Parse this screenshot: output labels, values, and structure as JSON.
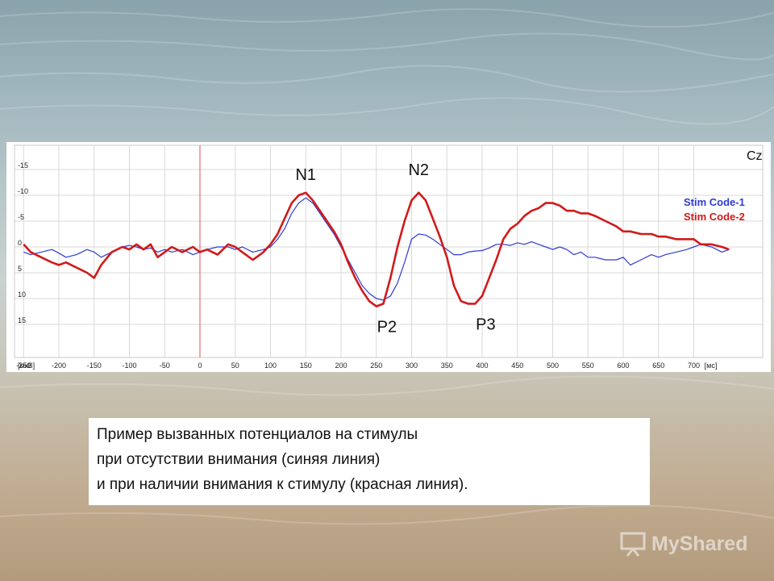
{
  "chart_data": {
    "type": "line",
    "channel_label": "Cz",
    "ylabel": "[мкВ]",
    "xlabel": "[мс]",
    "x_ticks": [
      -250,
      -200,
      -150,
      -100,
      -50,
      0,
      50,
      100,
      150,
      200,
      250,
      300,
      350,
      400,
      450,
      500,
      550,
      600,
      650,
      700
    ],
    "y_ticks": [
      -15,
      -10,
      -5,
      0,
      5,
      10,
      15
    ],
    "xlim": [
      -250,
      750
    ],
    "ylim": [
      -18,
      21
    ],
    "y_inverted": true,
    "grid": true,
    "stimulus_marker_x": 0,
    "legend_position": "top-right",
    "series": [
      {
        "name": "Stim Code-1",
        "color": "#2f3bd1",
        "x": [
          -250,
          -240,
          -225,
          -210,
          -200,
          -190,
          -175,
          -160,
          -150,
          -140,
          -125,
          -110,
          -100,
          -90,
          -80,
          -70,
          -60,
          -50,
          -40,
          -25,
          -10,
          0,
          10,
          25,
          40,
          50,
          60,
          75,
          90,
          100,
          110,
          120,
          130,
          140,
          150,
          160,
          170,
          180,
          190,
          200,
          210,
          220,
          230,
          240,
          250,
          260,
          270,
          280,
          290,
          300,
          310,
          320,
          330,
          340,
          350,
          360,
          370,
          380,
          390,
          400,
          410,
          420,
          430,
          440,
          450,
          460,
          470,
          480,
          490,
          500,
          510,
          520,
          530,
          540,
          550,
          560,
          575,
          590,
          600,
          610,
          625,
          640,
          650,
          660,
          675,
          690,
          700,
          710,
          725,
          740,
          750
        ],
        "y": [
          1,
          1.5,
          1,
          0.5,
          1.2,
          2,
          1.5,
          0.5,
          1,
          2,
          1,
          0,
          -0.3,
          0,
          0.5,
          0.2,
          1,
          0.5,
          1,
          0.5,
          1.5,
          1,
          0.5,
          0,
          0,
          0.5,
          0,
          1,
          0.5,
          0,
          -1.5,
          -3.5,
          -6.5,
          -8.5,
          -9.5,
          -8.5,
          -6.5,
          -4.5,
          -2.5,
          0,
          2.5,
          5,
          7.5,
          9,
          10,
          10.3,
          9.5,
          7,
          3,
          -1.5,
          -2.5,
          -2.3,
          -1.5,
          -0.5,
          0.5,
          1.5,
          1.5,
          1,
          0.8,
          0.7,
          0.2,
          -0.5,
          -0.5,
          -0.3,
          -0.8,
          -0.5,
          -1,
          -0.5,
          0,
          0.5,
          0,
          0.5,
          1.5,
          1,
          2,
          2,
          2.5,
          2.5,
          2,
          3.5,
          2.5,
          1.5,
          2,
          1.5,
          1,
          0.5,
          0,
          -0.5,
          0,
          1,
          0.5
        ]
      },
      {
        "name": "Stim Code-2",
        "color": "#d11a1a",
        "x": [
          -250,
          -240,
          -225,
          -210,
          -200,
          -190,
          -175,
          -160,
          -150,
          -140,
          -125,
          -110,
          -100,
          -90,
          -80,
          -70,
          -60,
          -50,
          -40,
          -25,
          -10,
          0,
          10,
          25,
          40,
          50,
          60,
          75,
          90,
          100,
          110,
          120,
          130,
          140,
          150,
          160,
          170,
          180,
          190,
          200,
          210,
          220,
          230,
          240,
          250,
          260,
          270,
          280,
          290,
          300,
          310,
          320,
          330,
          340,
          350,
          360,
          370,
          380,
          390,
          400,
          410,
          420,
          430,
          440,
          450,
          460,
          470,
          480,
          490,
          500,
          510,
          520,
          530,
          540,
          550,
          560,
          575,
          590,
          600,
          610,
          625,
          640,
          650,
          660,
          675,
          690,
          700,
          710,
          725,
          740,
          750
        ],
        "y": [
          -0.5,
          1,
          2,
          3,
          3.5,
          3,
          4,
          5,
          6,
          3.5,
          1,
          0,
          0.5,
          -0.5,
          0.5,
          -0.5,
          2,
          1,
          0,
          1,
          0,
          1,
          0.5,
          1.5,
          -0.5,
          0,
          1,
          2.5,
          1,
          -0.5,
          -2.5,
          -5.5,
          -8.5,
          -10,
          -10.5,
          -9,
          -7,
          -5,
          -3,
          -0.5,
          3,
          6,
          8.5,
          10.5,
          11.5,
          11,
          6,
          0,
          -5,
          -9,
          -10.5,
          -9,
          -5.5,
          -2,
          2,
          7.5,
          10.5,
          11,
          11,
          9.5,
          6,
          2.5,
          -1.5,
          -3.5,
          -4.5,
          -6,
          -7,
          -7.5,
          -8.5,
          -8.5,
          -8,
          -7,
          -7,
          -6.5,
          -6.5,
          -6,
          -5,
          -4,
          -3,
          -3,
          -2.5,
          -2.5,
          -2,
          -2,
          -1.5,
          -1.5,
          -1.5,
          -0.5,
          -0.5,
          0,
          0.5
        ]
      }
    ],
    "annotations": [
      {
        "label": "N1",
        "x": 150,
        "y": -9.5
      },
      {
        "label": "N2",
        "x": 310,
        "y": -10.5
      },
      {
        "label": "P2",
        "x": 265,
        "y": 11.5
      },
      {
        "label": "P3",
        "x": 405,
        "y": 11
      }
    ]
  },
  "caption": {
    "lines": [
      "Пример вызванных потенциалов на стимулы",
      "при отсутствии внимания (синяя линия)",
      "и при наличии внимания к стимулу (красная линия)."
    ]
  },
  "watermark": {
    "text": "MyShared",
    "icon": "presentation-icon"
  }
}
